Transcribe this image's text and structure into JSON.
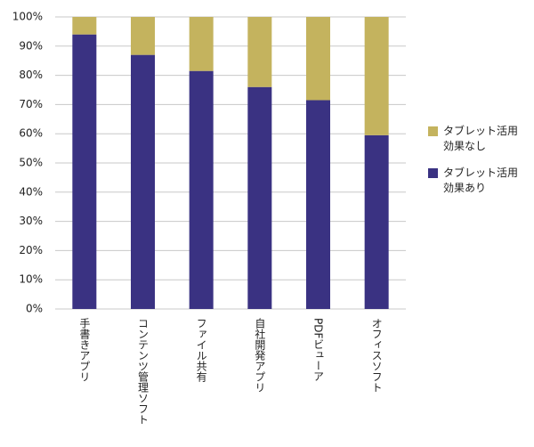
{
  "chart_data": {
    "type": "stacked_bar",
    "categories": [
      "手書きアプリ",
      "コンテンツ管理ソフト",
      "ファイル共有",
      "自社開発アプリ",
      "PDFビューア",
      "オフィスソフト"
    ],
    "series": [
      {
        "name": "タブレット活用効果あり",
        "color": "#3a3282",
        "values": [
          94,
          87,
          81.5,
          76,
          71.5,
          59.5
        ]
      },
      {
        "name": "タブレット活用効果なし",
        "color": "#c4b35e",
        "values": [
          6,
          13,
          18.5,
          24,
          28.5,
          40.5
        ]
      }
    ],
    "ylim": [
      0,
      100
    ],
    "yticks": [
      {
        "value": 0,
        "label": "0%"
      },
      {
        "value": 10,
        "label": "10%"
      },
      {
        "value": 20,
        "label": "20%"
      },
      {
        "value": 30,
        "label": "30%"
      },
      {
        "value": 40,
        "label": "40%"
      },
      {
        "value": 50,
        "label": "50%"
      },
      {
        "value": 60,
        "label": "60%"
      },
      {
        "value": 70,
        "label": "70%"
      },
      {
        "value": 80,
        "label": "80%"
      },
      {
        "value": 90,
        "label": "90%"
      },
      {
        "value": 100,
        "label": "100%"
      }
    ],
    "grid": true,
    "legend": "right"
  }
}
